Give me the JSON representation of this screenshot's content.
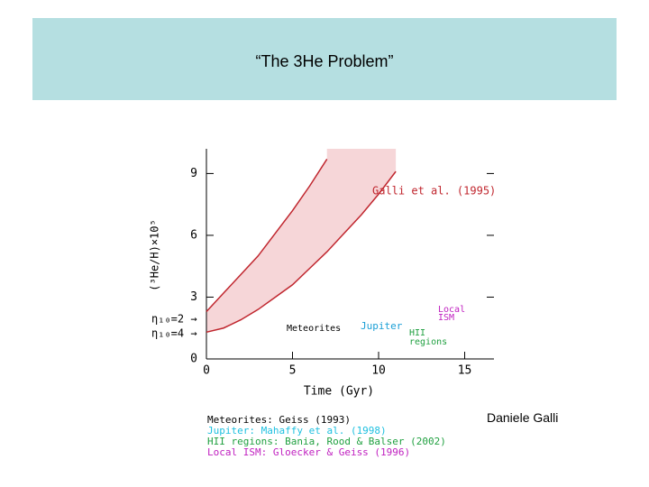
{
  "slide": {
    "title": "“The 3He Problem”",
    "author": "Daniele Galli"
  },
  "chart_data": {
    "type": "line",
    "x_label": "Time (Gyr)",
    "y_label": "(³He/H)×10⁵",
    "x": [
      0,
      1,
      2,
      3,
      4,
      5,
      6,
      7,
      8,
      9,
      10,
      11
    ],
    "series": [
      {
        "color": "#c0262e",
        "values": [
          2.3,
          3.2,
          4.1,
          5.0,
          6.1,
          7.2,
          8.4,
          9.7,
          null,
          null,
          null,
          null
        ]
      },
      {
        "color": "#c0262e",
        "values": [
          1.3,
          1.5,
          1.9,
          2.4,
          3.0,
          3.6,
          4.4,
          5.2,
          6.1,
          7.0,
          8.0,
          9.1
        ]
      }
    ],
    "band_color": "#f6d6d8",
    "xlim": [
      0,
      16.7
    ],
    "ylim": [
      0,
      10.2
    ],
    "xticks": [
      0,
      5,
      10,
      15
    ],
    "yticks": [
      0,
      3,
      6,
      9
    ],
    "annotations": [
      {
        "text": "Galli et al. (1995)",
        "color": "#c0262e"
      },
      {
        "text": "η₁₀=2 →",
        "color": "#000000"
      },
      {
        "text": "η₁₀=4 →",
        "color": "#000000"
      },
      {
        "text": "Meteorites",
        "color": "#000000"
      },
      {
        "text": "Jupiter",
        "color": "#1a9fd6"
      },
      {
        "text": "Local",
        "color": "#c020c0"
      },
      {
        "text": "ISM",
        "color": "#c020c0"
      },
      {
        "text": "HII",
        "color": "#20a040"
      },
      {
        "text": "regions",
        "color": "#20a040"
      }
    ],
    "references": [
      {
        "text": "Meteorites: Geiss (1993)",
        "color": "#000000"
      },
      {
        "text": "Jupiter: Mahaffy et al. (1998)",
        "color": "#1ec0e0"
      },
      {
        "text": "HII regions: Bania, Rood & Balser (2002)",
        "color": "#20a040"
      },
      {
        "text": "Local ISM: Gloecker & Geiss (1996)",
        "color": "#c020c0"
      }
    ]
  }
}
